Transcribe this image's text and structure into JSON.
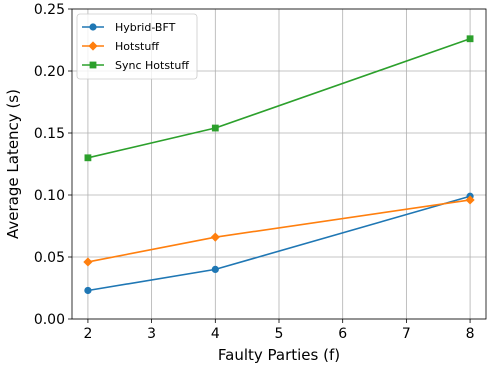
{
  "chart_data": {
    "type": "line",
    "title": "",
    "xlabel": "Faulty Parties (f)",
    "ylabel": "Average Latency (s)",
    "xlim": [
      1.75,
      8.25
    ],
    "ylim": [
      0.0,
      0.25
    ],
    "xticks": [
      2,
      3,
      4,
      5,
      6,
      7,
      8
    ],
    "xtick_labels": [
      "2",
      "3",
      "4",
      "5",
      "6",
      "7",
      "8"
    ],
    "yticks": [
      0.0,
      0.05,
      0.1,
      0.15,
      0.2,
      0.25
    ],
    "ytick_labels": [
      "0.00",
      "0.05",
      "0.10",
      "0.15",
      "0.20",
      "0.25"
    ],
    "grid": true,
    "legend_position": "top-left",
    "x": [
      2,
      4,
      8
    ],
    "series": [
      {
        "name": "Hybrid-BFT",
        "color": "#1f77b4",
        "marker": "circle",
        "values": [
          0.023,
          0.04,
          0.099
        ]
      },
      {
        "name": "Hotstuff",
        "color": "#ff7f0e",
        "marker": "diamond",
        "values": [
          0.046,
          0.066,
          0.096
        ]
      },
      {
        "name": "Sync Hotstuff",
        "color": "#2ca02c",
        "marker": "square",
        "values": [
          0.13,
          0.154,
          0.226
        ]
      }
    ]
  }
}
